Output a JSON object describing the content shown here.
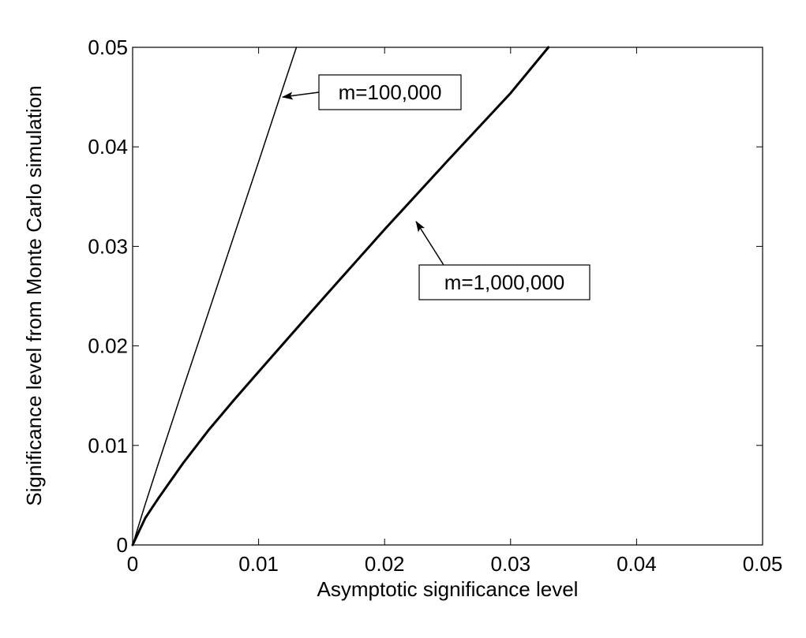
{
  "chart_data": {
    "type": "line",
    "title": "",
    "xlabel": "Asymptotic significance level",
    "ylabel": "Significance level from Monte Carlo simulation",
    "xlim": [
      0,
      0.05
    ],
    "ylim": [
      0,
      0.05
    ],
    "xticks": [
      "0",
      "0.01",
      "0.02",
      "0.03",
      "0.04",
      "0.05"
    ],
    "yticks": [
      "0",
      "0.01",
      "0.02",
      "0.03",
      "0.04",
      "0.05"
    ],
    "grid": false,
    "series": [
      {
        "name": "m=100,000",
        "x": [
          0,
          0.001,
          0.002,
          0.004,
          0.006,
          0.008,
          0.01,
          0.012,
          0.013
        ],
        "y": [
          0,
          0.0041,
          0.008,
          0.0157,
          0.0233,
          0.0309,
          0.0385,
          0.0462,
          0.05
        ],
        "line_width": "thin"
      },
      {
        "name": "m=1,000,000",
        "x": [
          0,
          0.001,
          0.002,
          0.004,
          0.006,
          0.008,
          0.01,
          0.015,
          0.02,
          0.025,
          0.03,
          0.033
        ],
        "y": [
          0,
          0.0027,
          0.0046,
          0.0082,
          0.0115,
          0.0145,
          0.0174,
          0.0246,
          0.0317,
          0.0386,
          0.0454,
          0.05
        ],
        "line_width": "thick"
      }
    ],
    "annotations": [
      {
        "text": "m=100,000",
        "series": 0,
        "arrow_to": [
          0.0119,
          0.045
        ]
      },
      {
        "text": "m=1,000,000",
        "series": 1,
        "arrow_to": [
          0.0225,
          0.0325
        ]
      }
    ]
  }
}
